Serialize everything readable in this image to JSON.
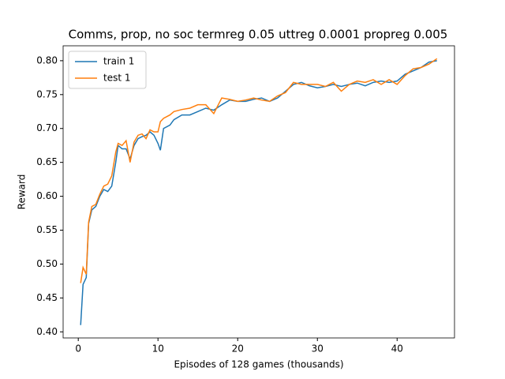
{
  "chart_data": {
    "type": "line",
    "title": "Comms, prop, no soc termreg 0.05 uttreg 0.0001 propreg 0.005",
    "xlabel": "Episodes of 128 games (thousands)",
    "ylabel": "Reward",
    "x": [
      0.3,
      0.6,
      1.0,
      1.3,
      1.7,
      2.2,
      2.7,
      3.2,
      3.7,
      4.2,
      4.7,
      5.0,
      5.5,
      6.0,
      6.5,
      7.0,
      7.5,
      8.0,
      8.5,
      9.0,
      9.5,
      10.0,
      10.3,
      10.7,
      11.5,
      12,
      13,
      14,
      15,
      16,
      17,
      18,
      19,
      20,
      21,
      22,
      23,
      24,
      25,
      26,
      27,
      28,
      29,
      30,
      31,
      32,
      33,
      34,
      35,
      36,
      37,
      38,
      39,
      40,
      41,
      42,
      43,
      44,
      45
    ],
    "series": [
      {
        "name": "train 1",
        "color": "#1f77b4",
        "values": [
          0.41,
          0.47,
          0.48,
          0.56,
          0.58,
          0.585,
          0.6,
          0.61,
          0.607,
          0.615,
          0.65,
          0.675,
          0.67,
          0.67,
          0.655,
          0.675,
          0.685,
          0.688,
          0.69,
          0.695,
          0.69,
          0.678,
          0.668,
          0.7,
          0.705,
          0.713,
          0.72,
          0.72,
          0.725,
          0.73,
          0.727,
          0.735,
          0.742,
          0.74,
          0.74,
          0.743,
          0.745,
          0.74,
          0.745,
          0.755,
          0.765,
          0.768,
          0.763,
          0.76,
          0.762,
          0.765,
          0.762,
          0.765,
          0.767,
          0.763,
          0.768,
          0.77,
          0.768,
          0.77,
          0.78,
          0.785,
          0.79,
          0.798,
          0.8
        ]
      },
      {
        "name": "test 1",
        "color": "#ff7f0e",
        "values": [
          0.472,
          0.495,
          0.485,
          0.562,
          0.585,
          0.588,
          0.603,
          0.615,
          0.618,
          0.63,
          0.665,
          0.678,
          0.675,
          0.682,
          0.65,
          0.68,
          0.69,
          0.692,
          0.685,
          0.698,
          0.695,
          0.695,
          0.71,
          0.715,
          0.72,
          0.725,
          0.728,
          0.73,
          0.735,
          0.735,
          0.722,
          0.745,
          0.743,
          0.74,
          0.742,
          0.745,
          0.742,
          0.74,
          0.748,
          0.753,
          0.768,
          0.765,
          0.765,
          0.765,
          0.762,
          0.768,
          0.755,
          0.765,
          0.77,
          0.768,
          0.772,
          0.765,
          0.772,
          0.765,
          0.778,
          0.788,
          0.79,
          0.795,
          0.803
        ]
      }
    ],
    "xlim": [
      -1.9,
      47.2
    ],
    "ylim": [
      0.391,
      0.822
    ],
    "xticks": [
      0,
      10,
      20,
      30,
      40
    ],
    "yticks": [
      {
        "value": 0.4,
        "label": "0.40"
      },
      {
        "value": 0.45,
        "label": "0.45"
      },
      {
        "value": 0.5,
        "label": "0.50"
      },
      {
        "value": 0.55,
        "label": "0.55"
      },
      {
        "value": 0.6,
        "label": "0.60"
      },
      {
        "value": 0.65,
        "label": "0.65"
      },
      {
        "value": 0.7,
        "label": "0.70"
      },
      {
        "value": 0.75,
        "label": "0.75"
      },
      {
        "value": 0.8,
        "label": "0.80"
      }
    ],
    "legend": "upper left"
  }
}
